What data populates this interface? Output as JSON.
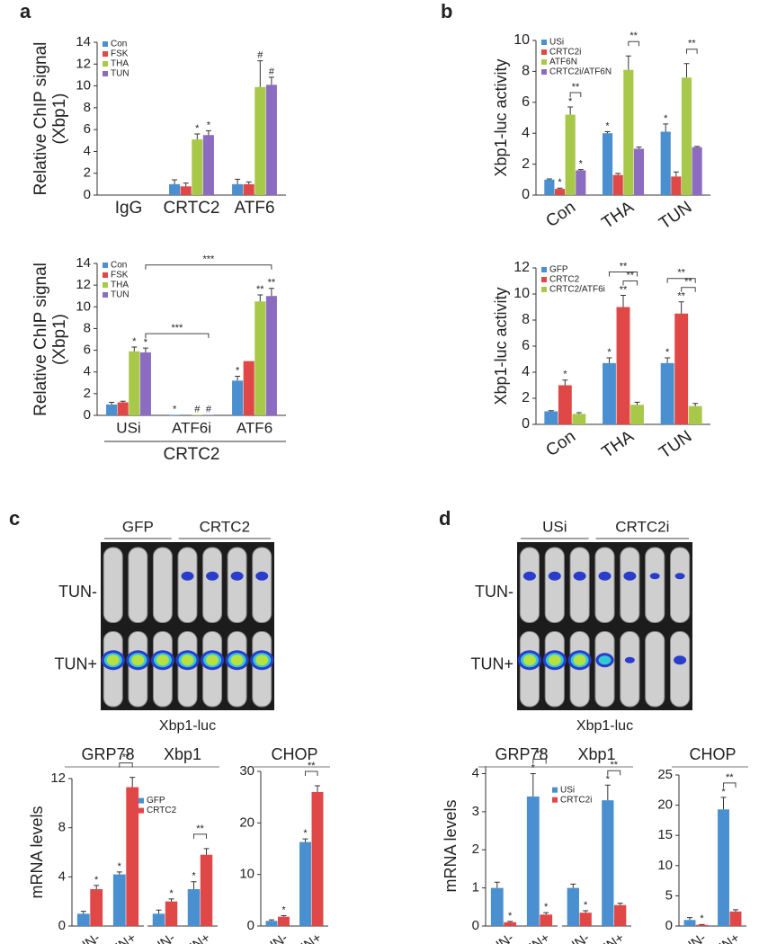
{
  "panels": [
    "a",
    "b",
    "c",
    "d"
  ],
  "images": [
    {
      "columns": [
        "GFP",
        "CRTC2"
      ],
      "rows": [
        "TUN-",
        "TUN+"
      ],
      "caption": "Xbp1-luc"
    },
    {
      "columns": [
        "USi",
        "CRTC2i"
      ],
      "rows": [
        "TUN-",
        "TUN+"
      ],
      "caption": "Xbp1-luc"
    }
  ],
  "chart_data": [
    {
      "type": "bar",
      "ylabel": [
        "Relative ChIP signal",
        "(Xbp1)"
      ],
      "categories": [
        "IgG",
        "CRTC2",
        "ATF6"
      ],
      "ylim": [
        0,
        14
      ],
      "yticks": [
        0,
        2,
        4,
        6,
        8,
        10,
        12,
        14
      ],
      "legend": "upper left",
      "series": [
        {
          "name": "Con",
          "color": "#4a90d0",
          "values": [
            0,
            1.0,
            1.0
          ],
          "errors": [
            null,
            0.4,
            0.45
          ],
          "significance": [
            null,
            null,
            null
          ]
        },
        {
          "name": "FSK",
          "color": "#e04848",
          "values": [
            0,
            0.8,
            1.0
          ],
          "errors": [
            null,
            0.3,
            0.2
          ],
          "significance": [
            null,
            null,
            null
          ]
        },
        {
          "name": "THA",
          "color": "#a8c84a",
          "values": [
            0,
            5.1,
            9.9
          ],
          "errors": [
            null,
            0.5,
            2.4
          ],
          "significance": [
            null,
            "*",
            "#"
          ]
        },
        {
          "name": "TUN",
          "color": "#8c6cc0",
          "values": [
            0,
            5.5,
            10.1
          ],
          "errors": [
            null,
            0.4,
            0.7
          ],
          "significance": [
            null,
            "*",
            "#"
          ]
        }
      ]
    },
    {
      "type": "bar",
      "ylabel": [
        "Relative ChIP signal",
        "(Xbp1)"
      ],
      "categories": [
        "USi",
        "ATF6i",
        "ATF6"
      ],
      "group_label": "CRTC2",
      "ylim": [
        0,
        14
      ],
      "yticks": [
        0,
        2,
        4,
        6,
        8,
        10,
        12,
        14
      ],
      "legend": "upper left",
      "series": [
        {
          "name": "Con",
          "color": "#4a90d0",
          "values": [
            1.0,
            0.05,
            3.2
          ],
          "errors": [
            0.2,
            null,
            0.4
          ],
          "significance": [
            null,
            "*",
            "*"
          ]
        },
        {
          "name": "FSK",
          "color": "#e04848",
          "values": [
            1.2,
            0,
            5.0
          ],
          "errors": [
            0.1,
            null,
            null
          ],
          "significance": [
            null,
            null,
            null
          ]
        },
        {
          "name": "THA",
          "color": "#a8c84a",
          "values": [
            5.9,
            0.05,
            10.5
          ],
          "errors": [
            0.4,
            null,
            0.6
          ],
          "significance": [
            "*",
            "#",
            "**"
          ]
        },
        {
          "name": "TUN",
          "color": "#8c6cc0",
          "values": [
            5.8,
            0.05,
            11.0
          ],
          "errors": [
            0.4,
            null,
            0.7
          ],
          "significance": [
            "*",
            "#",
            "**"
          ]
        }
      ],
      "brackets": [
        {
          "text": "***",
          "from": [
            0,
            3
          ],
          "to": [
            1,
            3
          ]
        },
        {
          "text": "***",
          "from": [
            0,
            3
          ],
          "to": [
            2,
            3
          ]
        }
      ]
    },
    {
      "type": "bar",
      "ylabel": "Xbp1-luc activity",
      "categories": [
        "Con",
        "THA",
        "TUN"
      ],
      "rotated_labels": true,
      "ylim": [
        0,
        10
      ],
      "yticks": [
        0,
        2,
        4,
        6,
        8,
        10
      ],
      "legend": "upper left",
      "series": [
        {
          "name": "USi",
          "color": "#4a90d0",
          "values": [
            1.0,
            4.0,
            4.1
          ],
          "errors": [
            0.05,
            0.1,
            0.5
          ],
          "significance": [
            null,
            "*",
            "*"
          ]
        },
        {
          "name": "CRTC2i",
          "color": "#e04848",
          "values": [
            0.4,
            1.3,
            1.2
          ],
          "errors": [
            0.05,
            0.1,
            0.3
          ],
          "significance": [
            "*",
            null,
            null
          ]
        },
        {
          "name": "ATF6N",
          "color": "#a8c84a",
          "values": [
            5.2,
            8.1,
            7.6
          ],
          "errors": [
            0.5,
            0.9,
            0.9
          ],
          "significance": [
            "*",
            null,
            null
          ]
        },
        {
          "name": "CRTC2i/ATF6N",
          "color": "#8c6cc0",
          "values": [
            1.6,
            3.0,
            3.1
          ],
          "errors": [
            0.05,
            0.1,
            0.05
          ],
          "significance": [
            "*",
            null,
            null
          ]
        }
      ],
      "brackets": [
        {
          "text": "**",
          "from": [
            0,
            2
          ],
          "to": [
            0,
            3
          ]
        },
        {
          "text": "**",
          "from": [
            1,
            2
          ],
          "to": [
            1,
            3
          ]
        },
        {
          "text": "**",
          "from": [
            2,
            2
          ],
          "to": [
            2,
            3
          ]
        }
      ]
    },
    {
      "type": "bar",
      "ylabel": "Xbp1-luc activity",
      "categories": [
        "Con",
        "THA",
        "TUN"
      ],
      "rotated_labels": true,
      "ylim": [
        0,
        12
      ],
      "yticks": [
        0,
        2,
        4,
        6,
        8,
        10,
        12
      ],
      "legend": "upper left",
      "series": [
        {
          "name": "GFP",
          "color": "#4a90d0",
          "values": [
            1.0,
            4.7,
            4.7
          ],
          "errors": [
            0.05,
            0.4,
            0.4
          ],
          "significance": [
            null,
            "*",
            "*"
          ]
        },
        {
          "name": "CRTC2",
          "color": "#e04848",
          "values": [
            3.0,
            9.0,
            8.5
          ],
          "errors": [
            0.4,
            0.9,
            0.9
          ],
          "significance": [
            "*",
            "**",
            "**"
          ]
        },
        {
          "name": "CRTC2/ATF6i",
          "color": "#a8c84a",
          "values": [
            0.8,
            1.5,
            1.4
          ],
          "errors": [
            0.1,
            0.2,
            0.2
          ],
          "significance": [
            null,
            null,
            null
          ]
        }
      ],
      "brackets": [
        {
          "text": "**",
          "from": [
            1,
            1
          ],
          "to": [
            1,
            2
          ]
        },
        {
          "text": "**",
          "from": [
            1,
            0
          ],
          "to": [
            1,
            2
          ]
        },
        {
          "text": "**",
          "from": [
            2,
            1
          ],
          "to": [
            2,
            2
          ]
        },
        {
          "text": "**",
          "from": [
            2,
            0
          ],
          "to": [
            2,
            2
          ]
        }
      ]
    },
    {
      "type": "bar",
      "title": "GRP78",
      "ylabel": "mRNA levels",
      "categories": [
        "TUN-",
        "TUN+"
      ],
      "rotated_labels": true,
      "ylim": [
        0,
        12
      ],
      "yticks": [
        0,
        4,
        8,
        12
      ],
      "legend": "center",
      "series": [
        {
          "name": "GFP",
          "color": "#4a90d0",
          "values": [
            1.0,
            4.2
          ],
          "errors": [
            0.2,
            0.2
          ],
          "significance": [
            null,
            "*"
          ]
        },
        {
          "name": "CRTC2",
          "color": "#e04848",
          "values": [
            3.0,
            11.3
          ],
          "errors": [
            0.3,
            0.8
          ],
          "significance": [
            "*",
            null
          ]
        }
      ],
      "brackets": [
        {
          "text": "**",
          "from": [
            1,
            0
          ],
          "to": [
            1,
            1
          ]
        }
      ]
    },
    {
      "type": "bar",
      "title": "Xbp1",
      "categories": [
        "TUN-",
        "TUN+"
      ],
      "rotated_labels": true,
      "ylim": [
        0,
        12
      ],
      "series": [
        {
          "color": "#4a90d0",
          "values": [
            1.0,
            3.0
          ],
          "errors": [
            0.3,
            0.6
          ],
          "significance": [
            null,
            "*"
          ]
        },
        {
          "color": "#e04848",
          "values": [
            2.0,
            5.8
          ],
          "errors": [
            0.2,
            0.5
          ],
          "significance": [
            "*",
            null
          ]
        }
      ],
      "brackets": [
        {
          "text": "**",
          "from": [
            1,
            0
          ],
          "to": [
            1,
            1
          ]
        }
      ]
    },
    {
      "type": "bar",
      "title": "CHOP",
      "categories": [
        "TUN-",
        "TUN+"
      ],
      "rotated_labels": true,
      "ylim": [
        0,
        30
      ],
      "yticks": [
        0,
        10,
        20,
        30
      ],
      "series": [
        {
          "color": "#4a90d0",
          "values": [
            1.0,
            16.3
          ],
          "errors": [
            0.2,
            0.6
          ],
          "significance": [
            null,
            "*"
          ]
        },
        {
          "color": "#e04848",
          "values": [
            1.8,
            26.0
          ],
          "errors": [
            0.2,
            1.2
          ],
          "significance": [
            "*",
            null
          ]
        }
      ],
      "brackets": [
        {
          "text": "**",
          "from": [
            1,
            0
          ],
          "to": [
            1,
            1
          ]
        }
      ]
    },
    {
      "type": "bar",
      "title": "GRP78",
      "ylabel": "mRNA levels",
      "categories": [
        "TUN-",
        "TUN+"
      ],
      "rotated_labels": true,
      "ylim": [
        0,
        4.2
      ],
      "yticks": [
        0,
        1,
        2,
        3,
        4
      ],
      "legend": "center",
      "series": [
        {
          "name": "USi",
          "color": "#4a90d0",
          "values": [
            1.0,
            3.4
          ],
          "errors": [
            0.15,
            0.6
          ],
          "significance": [
            null,
            "*"
          ]
        },
        {
          "name": "CRTC2i",
          "color": "#e04848",
          "values": [
            0.1,
            0.3
          ],
          "errors": [
            0.02,
            0.05
          ],
          "significance": [
            "*",
            "*"
          ]
        }
      ],
      "brackets": [
        {
          "text": "**",
          "from": [
            1,
            0
          ],
          "to": [
            1,
            1
          ]
        }
      ]
    },
    {
      "type": "bar",
      "title": "Xbp1",
      "categories": [
        "TUN-",
        "TUN+"
      ],
      "rotated_labels": true,
      "ylim": [
        0,
        4.2
      ],
      "series": [
        {
          "color": "#4a90d0",
          "values": [
            1.0,
            3.3
          ],
          "errors": [
            0.1,
            0.4
          ],
          "significance": [
            null,
            "*"
          ]
        },
        {
          "color": "#e04848",
          "values": [
            0.35,
            0.55
          ],
          "errors": [
            0.05,
            0.05
          ],
          "significance": [
            "*",
            null
          ]
        }
      ],
      "brackets": [
        {
          "text": "**",
          "from": [
            1,
            0
          ],
          "to": [
            1,
            1
          ]
        }
      ]
    },
    {
      "type": "bar",
      "title": "CHOP",
      "categories": [
        "TUN-",
        "TUN+"
      ],
      "rotated_labels": true,
      "ylim": [
        0,
        25
      ],
      "yticks": [
        0,
        5,
        10,
        15,
        20,
        25
      ],
      "series": [
        {
          "color": "#4a90d0",
          "values": [
            1.0,
            19.3
          ],
          "errors": [
            0.4,
            2.0
          ],
          "significance": [
            null,
            "*"
          ]
        },
        {
          "color": "#e04848",
          "values": [
            0.2,
            2.4
          ],
          "errors": [
            0.05,
            0.3
          ],
          "significance": [
            "*",
            null
          ]
        }
      ],
      "brackets": [
        {
          "text": "**",
          "from": [
            1,
            0
          ],
          "to": [
            1,
            1
          ]
        }
      ]
    }
  ]
}
